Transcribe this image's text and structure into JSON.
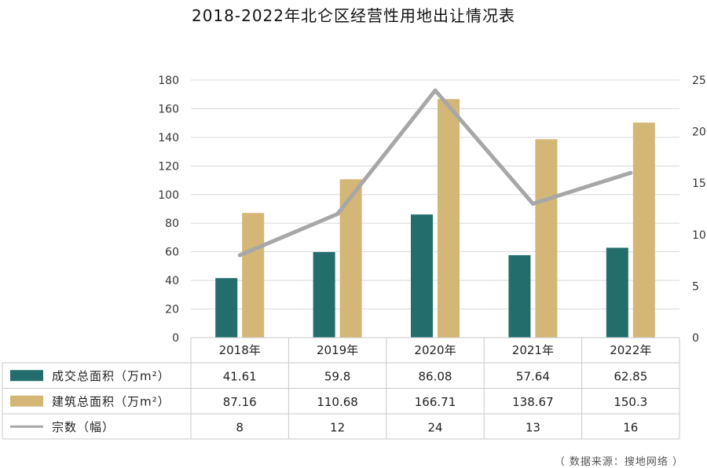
{
  "chart_data": {
    "type": "bar",
    "title": "2018-2022年北仑区经营性用地出让情况表",
    "categories": [
      "2018年",
      "2019年",
      "2020年",
      "2021年",
      "2022年"
    ],
    "series": [
      {
        "name": "成交总面积（万m²）",
        "type": "bar",
        "axis": "left",
        "color": "#236e6c",
        "values": [
          41.61,
          59.8,
          86.08,
          57.64,
          62.85
        ],
        "labels": [
          "41.61",
          "59.8",
          "86.08",
          "57.64",
          "62.85"
        ]
      },
      {
        "name": "建筑总面积（万m²）",
        "type": "bar",
        "axis": "right_none",
        "color": "#d4b677",
        "values": [
          87.16,
          110.68,
          166.71,
          138.67,
          150.3
        ],
        "labels": [
          "87.16",
          "110.68",
          "166.71",
          "138.67",
          "150.3"
        ]
      },
      {
        "name": "宗数（幅）",
        "type": "line",
        "axis": "right",
        "color": "#a7a7a7",
        "values": [
          8,
          12,
          24,
          13,
          16
        ],
        "labels": [
          "8",
          "12",
          "24",
          "13",
          "16"
        ]
      }
    ],
    "y_left": {
      "range": [
        0,
        180
      ],
      "ticks": [
        "0",
        "20",
        "40",
        "60",
        "80",
        "100",
        "120",
        "140",
        "160",
        "180"
      ]
    },
    "y_right": {
      "range": [
        0,
        25
      ],
      "ticks": [
        "0",
        "5",
        "10",
        "15",
        "20",
        "25"
      ]
    },
    "grid": true,
    "legend": "data-table-below"
  },
  "source": "（ 数据来源：搜地网络 ）"
}
